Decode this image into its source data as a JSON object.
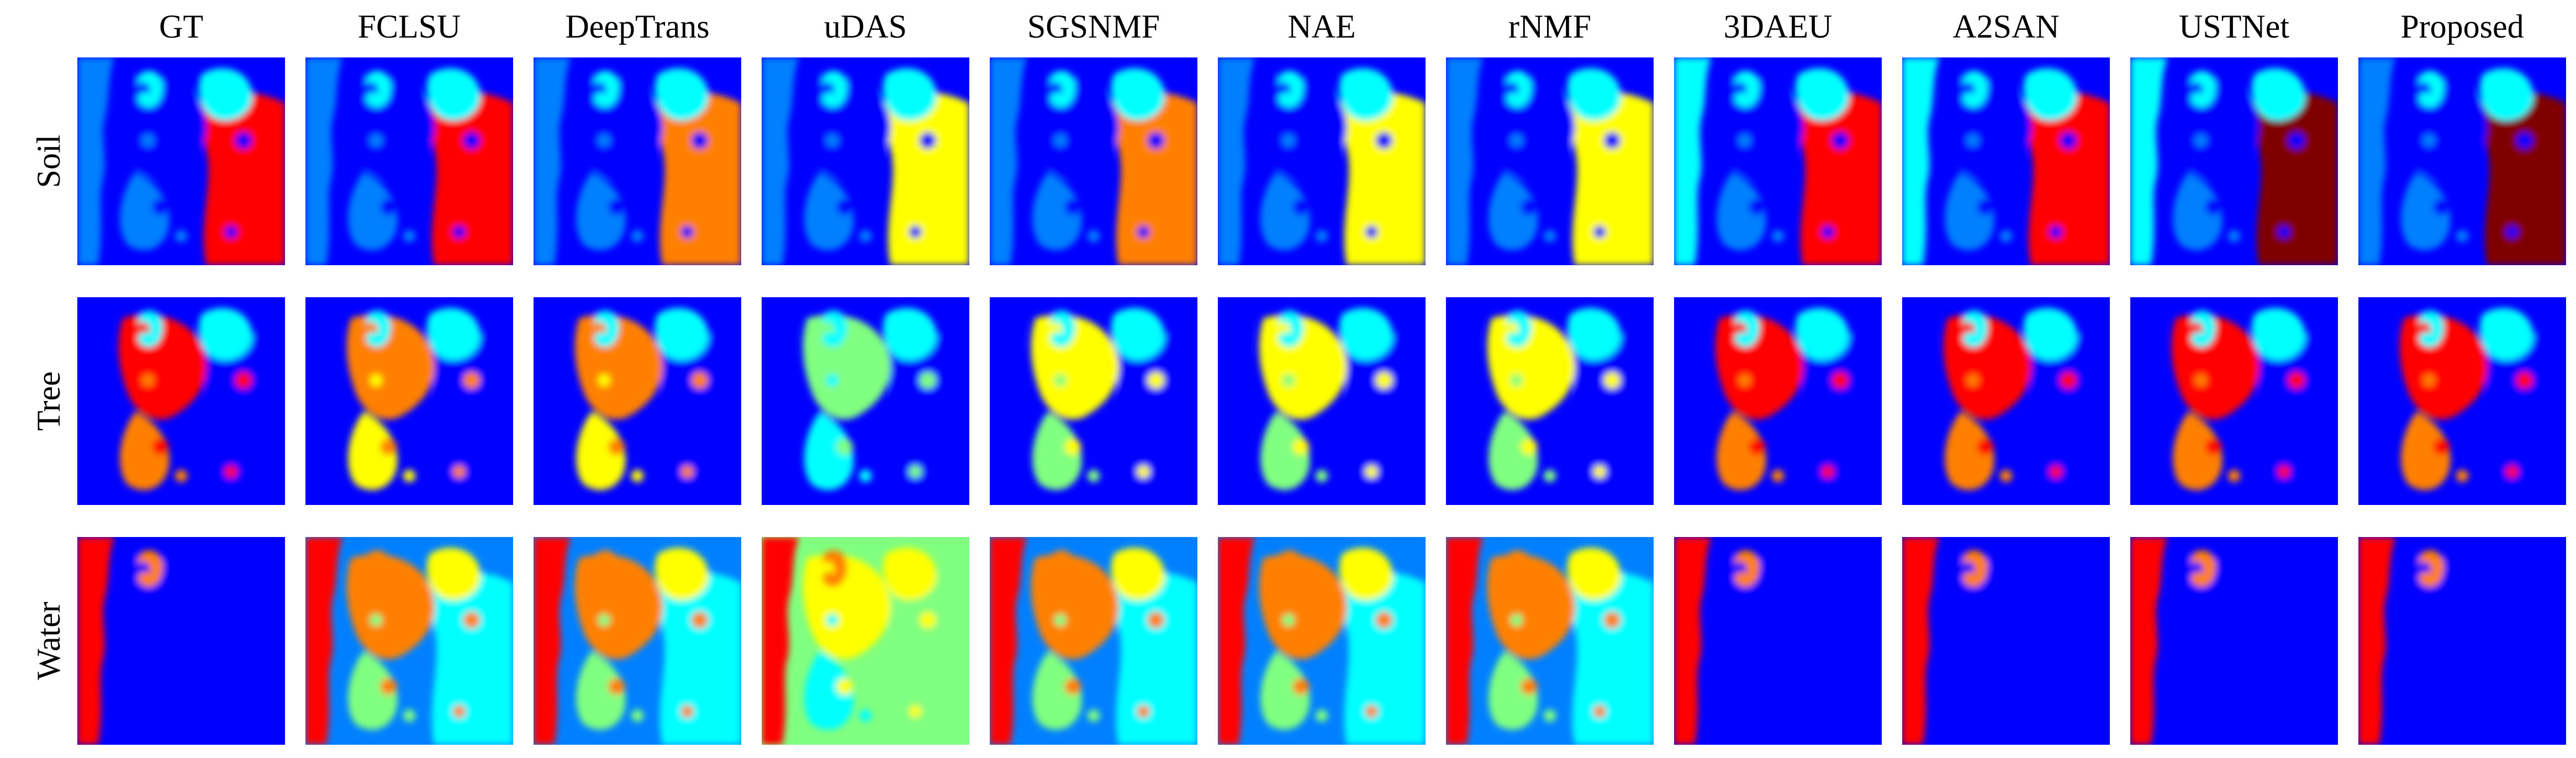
{
  "figure": {
    "columns": [
      {
        "label": "GT",
        "key": "gt"
      },
      {
        "label": "FCLSU",
        "key": "fclsu"
      },
      {
        "label": "DeepTrans",
        "key": "deeptrans"
      },
      {
        "label": "uDAS",
        "key": "udas"
      },
      {
        "label": "SGSNMF",
        "key": "sgsnmf"
      },
      {
        "label": "NAE",
        "key": "nae"
      },
      {
        "label": "rNMF",
        "key": "rnmf"
      },
      {
        "label": "3DAEU",
        "key": "3daeu"
      },
      {
        "label": "A2SAN",
        "key": "a2san"
      },
      {
        "label": "USTNet",
        "key": "ustnet"
      },
      {
        "label": "Proposed",
        "key": "proposed"
      }
    ],
    "rows": [
      {
        "label": "Soil",
        "key": "soil"
      },
      {
        "label": "Tree",
        "key": "tree"
      },
      {
        "label": "Water",
        "key": "water"
      }
    ],
    "colormap": [
      "#00008f",
      "#0000ff",
      "#0080ff",
      "#00ffff",
      "#80ff80",
      "#ffff00",
      "#ff8000",
      "#ff0000",
      "#800000"
    ]
  }
}
